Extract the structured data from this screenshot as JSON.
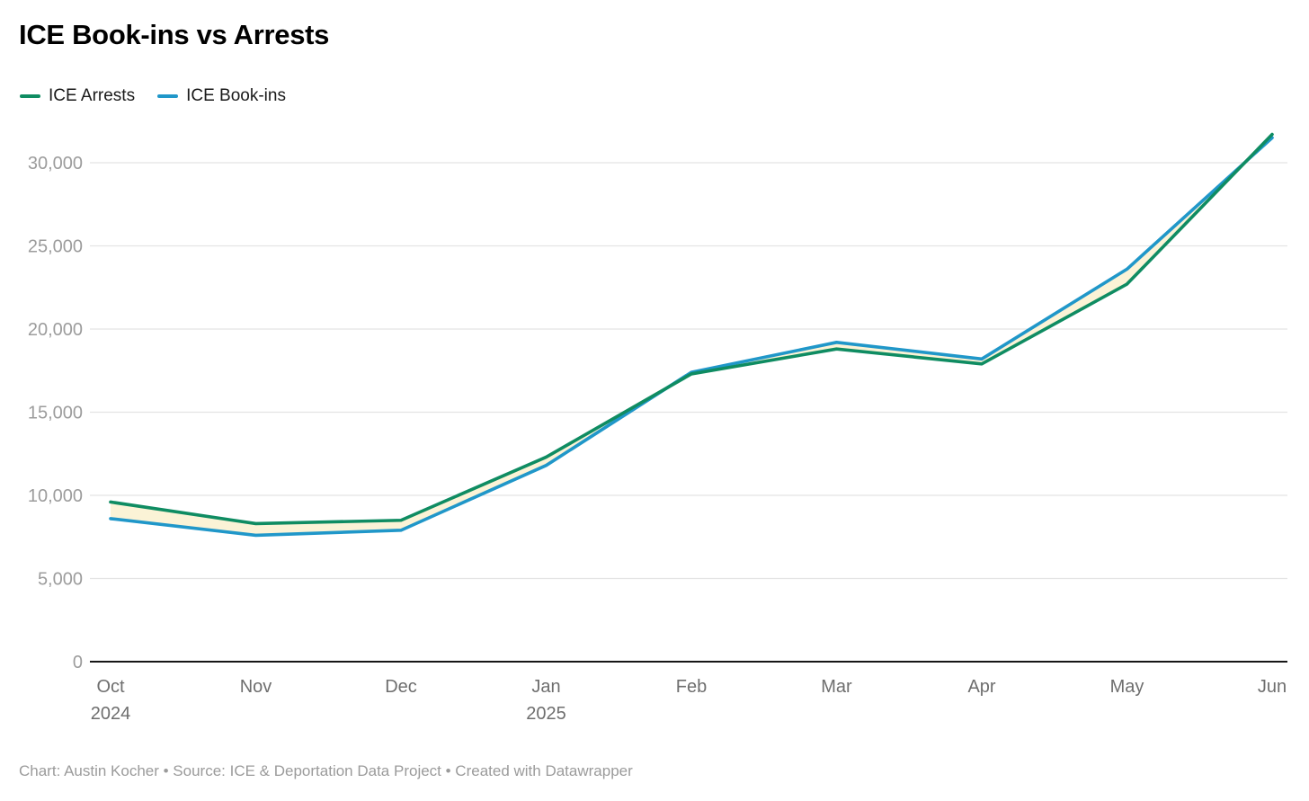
{
  "header": {
    "title": "ICE Book-ins vs Arrests"
  },
  "legend": {
    "items": [
      {
        "label": "ICE Arrests",
        "color": "#0f8c62"
      },
      {
        "label": "ICE Book-ins",
        "color": "#2097c9"
      }
    ]
  },
  "footer": {
    "text": "Chart: Austin Kocher • Source: ICE & Deportation Data Project • Created with Datawrapper"
  },
  "chart_data": {
    "type": "line",
    "title": "ICE Book-ins vs Arrests",
    "categories": [
      "Oct 2024",
      "Nov 2024",
      "Dec 2024",
      "Jan 2025",
      "Feb 2025",
      "Mar 2025",
      "Apr 2025",
      "May 2025",
      "Jun 2025"
    ],
    "x_labels": [
      [
        "Oct",
        "2024"
      ],
      [
        "Nov"
      ],
      [
        "Dec"
      ],
      [
        "Jan",
        "2025"
      ],
      [
        "Feb"
      ],
      [
        "Mar"
      ],
      [
        "Apr"
      ],
      [
        "May"
      ],
      [
        "Jun"
      ]
    ],
    "series": [
      {
        "name": "ICE Arrests",
        "color": "#0f8c62",
        "values": [
          9600,
          8300,
          8500,
          12300,
          17300,
          18800,
          17900,
          22700,
          31700
        ]
      },
      {
        "name": "ICE Book-ins",
        "color": "#2097c9",
        "values": [
          8600,
          7600,
          7900,
          11800,
          17400,
          19200,
          18200,
          23600,
          31500
        ]
      }
    ],
    "y_ticks": [
      0,
      5000,
      10000,
      15000,
      20000,
      25000,
      30000
    ],
    "ylim": [
      0,
      31700
    ],
    "grid": "horizontal",
    "legend_position": "top-left",
    "fill_between_color": "#fbf3d6",
    "colors": {
      "gridline": "#e4e4e4",
      "axis_line": "#161616",
      "y_tick_text": "#9c9c9c",
      "x_tick_text": "#6e6e6e"
    }
  }
}
